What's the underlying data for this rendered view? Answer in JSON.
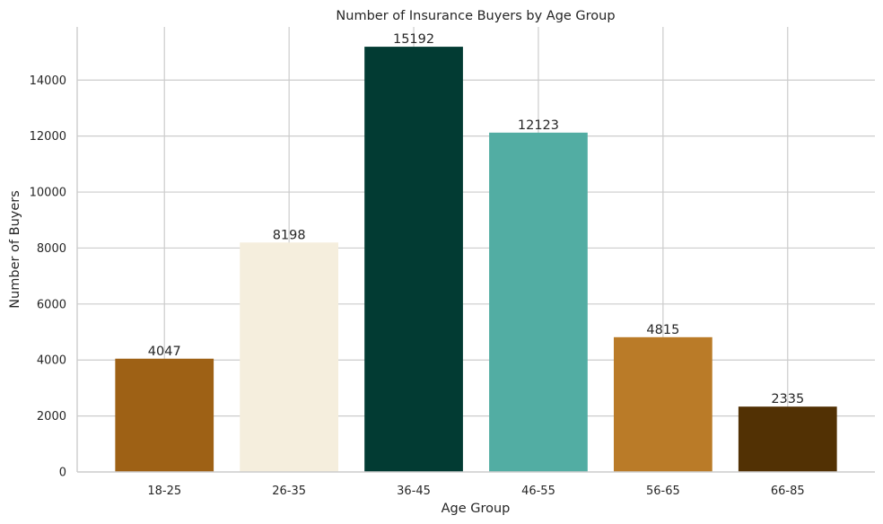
{
  "chart_data": {
    "type": "bar",
    "title": "Number of Insurance Buyers by Age Group",
    "xlabel": "Age Group",
    "ylabel": "Number of Buyers",
    "categories": [
      "18-25",
      "26-35",
      "36-45",
      "46-55",
      "56-65",
      "66-85"
    ],
    "values": [
      4047,
      8198,
      15192,
      12123,
      4815,
      2335
    ],
    "colors": [
      "#9e6115",
      "#f5eedd",
      "#023b33",
      "#52ada3",
      "#ba7b28",
      "#523104"
    ],
    "ylim": [
      0,
      15900
    ],
    "yticks": [
      0,
      2000,
      4000,
      6000,
      8000,
      10000,
      12000,
      14000
    ],
    "grid": true,
    "legend": "none"
  }
}
